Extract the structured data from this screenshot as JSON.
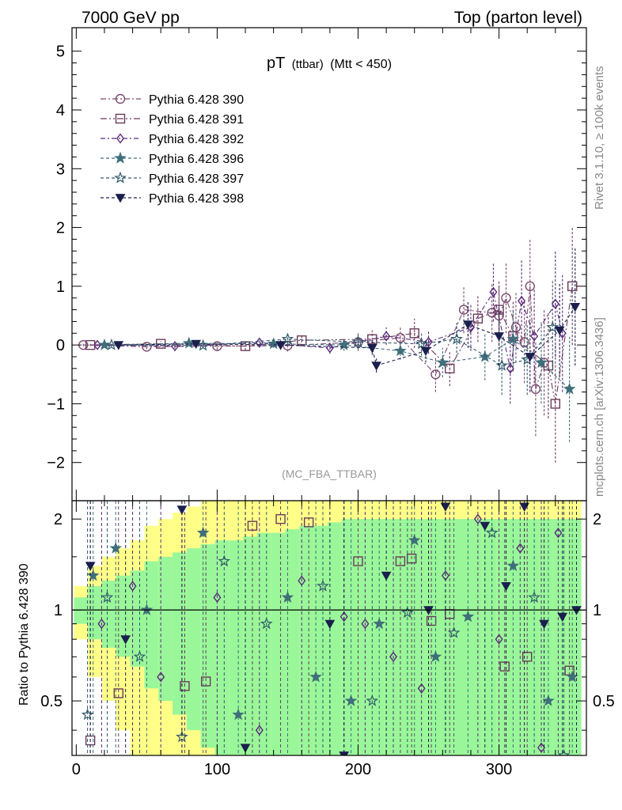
{
  "header": {
    "left": "7000 GeV pp",
    "right": "Top (parton level)",
    "side_top": "Rivet 3.1.10, ≥ 100k events",
    "side_bottom": "mcplots.cern.ch [arXiv:1306.3436]"
  },
  "chart_data": [
    {
      "type": "scatter",
      "title": "pT (ttbar) (Mtt < 450)",
      "title_main": "pT",
      "title_sub": "(ttbar)",
      "title_cut": "(Mtt < 450)",
      "watermark": "(MC_FBA_TTBAR)",
      "xlim": [
        -3,
        362
      ],
      "ylim": [
        -2.65,
        5.4
      ],
      "yticks": [
        "−2",
        "−1",
        "0",
        "1",
        "2",
        "3",
        "4",
        "5"
      ],
      "ytick_values": [
        -2,
        -1,
        0,
        1,
        2,
        3,
        4,
        5
      ],
      "legend_position": "top-left",
      "colors": {
        "s390": "#7b4b6f",
        "s391": "#6a3b5b",
        "s392": "#5b2a7a",
        "s396": "#3f6f7a",
        "s397": "#2f5a6a",
        "s398": "#1b1f4d"
      },
      "series": [
        {
          "name": "Pythia 6.428 390",
          "key": "s390",
          "marker": "circle",
          "dash": "7,3,2,3",
          "x": [
            5,
            50,
            100,
            150,
            200,
            230,
            255,
            275,
            295,
            300,
            305,
            312,
            318,
            322,
            326,
            332
          ],
          "y": [
            0,
            -0.03,
            -0.02,
            -0.01,
            0.05,
            0.12,
            -0.5,
            0.6,
            0.55,
            0.5,
            0.8,
            0.3,
            0.05,
            1.0,
            -0.75,
            -0.3
          ],
          "err": [
            0.02,
            0.04,
            0.06,
            0.1,
            0.15,
            0.2,
            0.3,
            0.4,
            0.5,
            0.5,
            0.6,
            0.6,
            0.7,
            0.8,
            0.8,
            0.9
          ]
        },
        {
          "name": "Pythia 6.428 391",
          "key": "s391",
          "marker": "square-open",
          "dash": "8,3,2,3,2,3",
          "x": [
            10,
            60,
            120,
            160,
            210,
            240,
            265,
            285,
            300,
            310,
            335,
            340,
            352
          ],
          "y": [
            0,
            0.02,
            -0.02,
            0.08,
            0.1,
            0.2,
            -0.4,
            0.45,
            0.6,
            0.15,
            -0.35,
            -1.0,
            1.0
          ],
          "err": [
            0.02,
            0.04,
            0.07,
            0.1,
            0.15,
            0.25,
            0.3,
            0.4,
            0.5,
            0.6,
            0.9,
            1.0,
            1.0
          ]
        },
        {
          "name": "Pythia 6.428 392",
          "key": "s392",
          "marker": "diamond",
          "dash": "6,3,2,3",
          "x": [
            15,
            70,
            130,
            180,
            220,
            250,
            280,
            296,
            308,
            316,
            325,
            340,
            345
          ],
          "y": [
            0,
            -0.02,
            0.04,
            -0.05,
            0.15,
            0.05,
            0.3,
            0.9,
            -0.4,
            0.75,
            0.15,
            0.7,
            0.2
          ],
          "err": [
            0.02,
            0.04,
            0.07,
            0.1,
            0.15,
            0.2,
            0.4,
            0.5,
            0.6,
            0.7,
            0.8,
            0.9,
            1.0
          ]
        },
        {
          "name": "Pythia 6.428 396",
          "key": "s396",
          "marker": "star",
          "dash": "4,3",
          "x": [
            20,
            80,
            140,
            190,
            230,
            260,
            290,
            310,
            330,
            350
          ],
          "y": [
            0,
            0.03,
            0.02,
            0.0,
            -0.1,
            -0.3,
            -0.2,
            0.1,
            -0.3,
            -0.75
          ],
          "err": [
            0.02,
            0.04,
            0.07,
            0.1,
            0.15,
            0.25,
            0.4,
            0.5,
            0.7,
            0.9
          ]
        },
        {
          "name": "Pythia 6.428 397",
          "key": "s397",
          "marker": "star-open",
          "dash": "4,3",
          "x": [
            25,
            90,
            150,
            200,
            245,
            270,
            302,
            320,
            338
          ],
          "y": [
            0,
            -0.01,
            0.1,
            0.05,
            0.02,
            0.1,
            -0.35,
            -0.25,
            0.3
          ],
          "err": [
            0.02,
            0.04,
            0.08,
            0.12,
            0.2,
            0.3,
            0.5,
            0.6,
            0.8
          ]
        },
        {
          "name": "Pythia 6.428 398",
          "key": "s398",
          "marker": "triangle-down",
          "dash": "4,3",
          "x": [
            30,
            85,
            145,
            210,
            213,
            248,
            278,
            300,
            322,
            343,
            354
          ],
          "y": [
            0,
            0.02,
            0.0,
            -0.05,
            -0.35,
            -0.1,
            0.35,
            0.15,
            -0.2,
            0.25,
            0.65
          ],
          "err": [
            0.02,
            0.04,
            0.08,
            0.12,
            0.12,
            0.2,
            0.4,
            0.5,
            0.6,
            0.8,
            1.0
          ]
        }
      ]
    },
    {
      "type": "scatter",
      "ylabel": "Ratio to Pythia 6.428 390",
      "xlim": [
        -3,
        362
      ],
      "ylim": [
        0.33,
        2.3
      ],
      "xticks": [
        "0",
        "100",
        "200",
        "300"
      ],
      "xtick_values": [
        0,
        100,
        200,
        300
      ],
      "yticks": [
        "0.5",
        "1",
        "2"
      ],
      "ytick_values": [
        0.5,
        1,
        2
      ],
      "reference_line": 1,
      "band_colors": {
        "one_sigma": "#99f799",
        "two_sigma": "#ffff88"
      },
      "bands": {
        "x": [
          0,
          10,
          20,
          30,
          40,
          50,
          60,
          70,
          80,
          90,
          100,
          110,
          120,
          130,
          140,
          150,
          160,
          170,
          180,
          190,
          200,
          210,
          220,
          230,
          240,
          250,
          260,
          270,
          280,
          290,
          300,
          310,
          320,
          330,
          340,
          350
        ],
        "one_sigma": [
          0.1,
          0.2,
          0.25,
          0.3,
          0.35,
          0.45,
          0.5,
          0.55,
          0.6,
          0.65,
          0.7,
          0.7,
          0.75,
          0.8,
          0.8,
          0.85,
          0.9,
          0.9,
          0.95,
          1.0,
          1.0,
          1.0,
          1.0,
          1.0,
          1.0,
          1.0,
          1.0,
          1.0,
          1.0,
          1.0,
          1.0,
          1.0,
          1.0,
          1.0,
          1.0,
          1.0
        ],
        "two_sigma": [
          0.2,
          0.4,
          0.5,
          0.6,
          0.7,
          0.9,
          1.0,
          1.1,
          1.2,
          1.3,
          1.4,
          1.4,
          1.5,
          1.6,
          1.6,
          1.7,
          1.8,
          1.8,
          1.9,
          2.0,
          2.0,
          2.0,
          2.0,
          2.0,
          2.0,
          2.0,
          2.0,
          2.0,
          2.0,
          2.0,
          2.0,
          2.0,
          2.0,
          2.0,
          2.0,
          2.0
        ]
      },
      "series": [
        {
          "key": "s391",
          "marker": "square-open",
          "dash": "8,3,2,3,2,3",
          "x": [
            10,
            30,
            77,
            92,
            125,
            145,
            165,
            200,
            230,
            238,
            252,
            265,
            304,
            320,
            350
          ],
          "y": [
            0.37,
            0.53,
            0.56,
            0.58,
            1.9,
            2.0,
            1.95,
            1.45,
            1.45,
            1.48,
            0.92,
            0.97,
            0.65,
            0.7,
            0.63
          ]
        },
        {
          "key": "s392",
          "marker": "diamond",
          "dash": "6,3,2,3",
          "x": [
            18,
            40,
            60,
            100,
            130,
            160,
            190,
            205,
            225,
            245,
            262,
            285,
            300,
            315,
            330,
            342
          ],
          "y": [
            0.9,
            1.2,
            0.6,
            1.1,
            0.4,
            1.25,
            0.95,
            0.9,
            0.7,
            0.55,
            1.3,
            2.0,
            0.8,
            1.6,
            0.35,
            1.8
          ]
        },
        {
          "key": "s396",
          "marker": "star",
          "dash": "4,3",
          "x": [
            12,
            28,
            50,
            90,
            115,
            150,
            170,
            195,
            215,
            240,
            255,
            278,
            310,
            335,
            352
          ],
          "y": [
            1.3,
            1.6,
            1.0,
            1.8,
            0.45,
            1.1,
            0.6,
            0.5,
            0.9,
            1.7,
            0.7,
            0.95,
            1.4,
            0.5,
            0.6
          ]
        },
        {
          "key": "s397",
          "marker": "star-open",
          "dash": "4,3",
          "x": [
            8,
            22,
            45,
            75,
            105,
            135,
            175,
            210,
            235,
            268,
            295,
            325,
            346
          ],
          "y": [
            0.45,
            1.1,
            0.7,
            0.38,
            1.45,
            0.9,
            1.2,
            0.5,
            0.98,
            0.84,
            1.8,
            1.1,
            0.33
          ]
        },
        {
          "key": "s398",
          "marker": "triangle-down",
          "dash": "4,3",
          "x": [
            10,
            35,
            75,
            120,
            180,
            190,
            220,
            250,
            262,
            290,
            305,
            318,
            332,
            345,
            355
          ],
          "y": [
            1.4,
            0.8,
            2.15,
            0.35,
            0.9,
            0.33,
            1.3,
            1.0,
            2.2,
            1.9,
            1.2,
            2.2,
            0.9,
            0.95,
            1.0
          ]
        }
      ]
    }
  ]
}
